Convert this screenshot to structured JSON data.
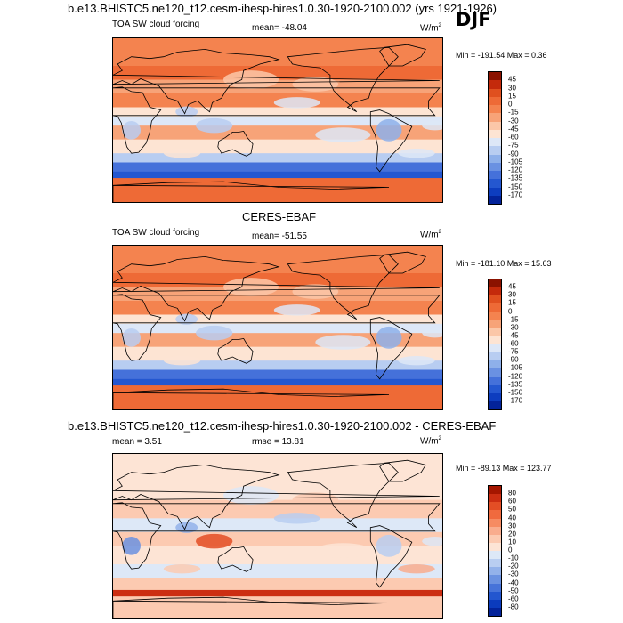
{
  "title": "b.e13.BHISTC5.ne120_t12.cesm-ihesp-hires1.0.30-1920-2100.002 (yrs 1921-1926)",
  "season": "DJF",
  "chart_data": [
    {
      "type": "heatmap",
      "name": "model",
      "title": "b.e13.BHISTC5.ne120_t12.cesm-ihesp-hires1.0.30-1920-2100.002 (yrs 1921-1926)",
      "left_label": "TOA SW cloud forcing",
      "stat_label": "mean= -48.04",
      "units": "W/m",
      "units_sup": "2",
      "minmax": "Min = -191.54 Max =   0.36",
      "levels": [
        "45",
        "30",
        "15",
        "0",
        "-15",
        "-30",
        "-45",
        "-60",
        "-75",
        "-90",
        "-105",
        "-120",
        "-135",
        "-150",
        "-170"
      ],
      "colors": [
        "#8b1200",
        "#c42a0b",
        "#e0501f",
        "#ee6a36",
        "#f4834f",
        "#f7a378",
        "#fbc7a8",
        "#fde4d3",
        "#dde7f7",
        "#b8cdf1",
        "#8eb0ea",
        "#6a91e2",
        "#4571da",
        "#2457d0",
        "#0d3dbf",
        "#03239a"
      ]
    },
    {
      "type": "heatmap",
      "name": "obs",
      "title": "CERES-EBAF",
      "left_label": "TOA SW cloud forcing",
      "stat_label": "mean= -51.55",
      "units": "W/m",
      "units_sup": "2",
      "minmax": "Min = -181.10 Max =  15.63",
      "levels": [
        "45",
        "30",
        "15",
        "0",
        "-15",
        "-30",
        "-45",
        "-60",
        "-75",
        "-90",
        "-105",
        "-120",
        "-135",
        "-150",
        "-170"
      ],
      "colors": [
        "#8b1200",
        "#c42a0b",
        "#e0501f",
        "#ee6a36",
        "#f4834f",
        "#f7a378",
        "#fbc7a8",
        "#fde4d3",
        "#dde7f7",
        "#b8cdf1",
        "#8eb0ea",
        "#6a91e2",
        "#4571da",
        "#2457d0",
        "#0d3dbf",
        "#03239a"
      ]
    },
    {
      "type": "heatmap",
      "name": "diff",
      "title": "b.e13.BHISTC5.ne120_t12.cesm-ihesp-hires1.0.30-1920-2100.002 - CERES-EBAF",
      "left_label": "mean =   3.51",
      "stat_label": "rmse =  13.81",
      "units": "W/m",
      "units_sup": "2",
      "minmax": "Min = -89.13 Max = 123.77",
      "levels": [
        "80",
        "60",
        "50",
        "40",
        "30",
        "20",
        "10",
        "0",
        "-10",
        "-20",
        "-30",
        "-40",
        "-50",
        "-60",
        "-80"
      ],
      "colors": [
        "#a51600",
        "#cc2e12",
        "#e34e25",
        "#f06a3e",
        "#f68b62",
        "#f9ac8d",
        "#fccab1",
        "#fde4d5",
        "#dde8f7",
        "#b9cef1",
        "#93b2ea",
        "#6b92e1",
        "#4673d9",
        "#2356cf",
        "#0b3bbd",
        "#03239a"
      ]
    }
  ]
}
